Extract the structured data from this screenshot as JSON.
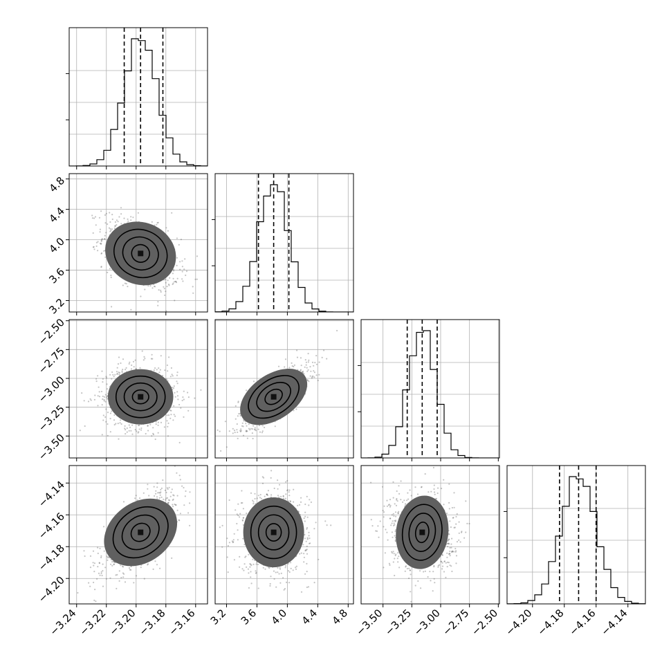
{
  "chart_data": {
    "type": "corner",
    "title": "",
    "parameters": [
      {
        "label": "",
        "range": [
          -3.245,
          -3.152
        ],
        "ticks": [
          -3.24,
          -3.22,
          -3.2,
          -3.18,
          -3.16
        ],
        "tick_labels": [
          "−3.24",
          "−3.22",
          "−3.20",
          "−3.18",
          "−3.16"
        ],
        "mean": -3.197,
        "sd": 0.011,
        "quantiles": [
          -3.208,
          -3.197,
          -3.182
        ]
      },
      {
        "label": "",
        "range": [
          3.05,
          4.87
        ],
        "ticks": [
          3.2,
          3.6,
          4.0,
          4.4,
          4.8
        ],
        "tick_labels": [
          "3.2",
          "3.6",
          "4.0",
          "4.4",
          "4.8"
        ],
        "mean": 3.82,
        "sd": 0.2,
        "quantiles": [
          3.62,
          3.82,
          4.02
        ]
      },
      {
        "label": "",
        "range": [
          -3.69,
          -2.49
        ],
        "ticks": [
          -3.5,
          -3.25,
          -3.0,
          -2.75,
          -2.5
        ],
        "tick_labels": [
          "−3.50",
          "−3.25",
          "−3.00",
          "−2.75",
          "−2.50"
        ],
        "mean": -3.16,
        "sd": 0.12,
        "quantiles": [
          -3.29,
          -3.16,
          -3.03
        ]
      },
      {
        "label": "",
        "range": [
          -4.216,
          -4.129
        ],
        "ticks": [
          -4.2,
          -4.18,
          -4.16,
          -4.14
        ],
        "tick_labels": [
          "−4.20",
          "−4.18",
          "−4.16",
          "−4.14"
        ],
        "mean": -4.171,
        "sd": 0.011,
        "quantiles": [
          -4.183,
          -4.171,
          -4.16
        ]
      }
    ],
    "correlations": [
      {
        "i": 1,
        "j": 0,
        "rho": -0.45
      },
      {
        "i": 2,
        "j": 0,
        "rho": 0.0
      },
      {
        "i": 2,
        "j": 1,
        "rho": 0.75
      },
      {
        "i": 3,
        "j": 0,
        "rho": 0.7
      },
      {
        "i": 3,
        "j": 1,
        "rho": 0.0
      },
      {
        "i": 3,
        "j": 2,
        "rho": -0.1
      }
    ],
    "histogram_bins": 20,
    "contour_levels": [
      0.5,
      1.0,
      1.5,
      2.0
    ],
    "quantile_lines": [
      0.16,
      0.5,
      0.84
    ],
    "grid": true,
    "colors": {
      "line": "#000000",
      "points": "#555555",
      "grid": "#b0b0b0"
    }
  }
}
